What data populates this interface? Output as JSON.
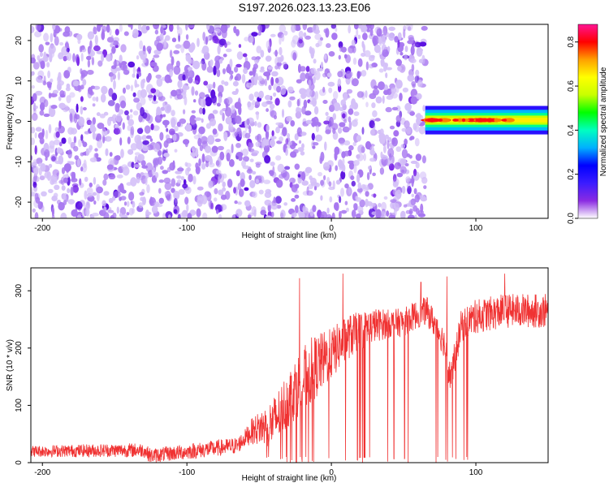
{
  "title": "S197.2026.023.13.23.E06",
  "colors": {
    "snr_line": "#f03232",
    "axis": "#000000",
    "colorbar": [
      "#ffffff",
      "#8a2be2",
      "#3b1cff",
      "#0000ff",
      "#00b0ff",
      "#00ffc0",
      "#00ff00",
      "#c8ff00",
      "#ffff00",
      "#ffa000",
      "#ff0000",
      "#ff1493"
    ]
  },
  "chart_data": [
    {
      "type": "heatmap",
      "title": "",
      "xlabel": "Height of straight line (km)",
      "ylabel": "Frequency (Hz)",
      "xlim": [
        -208,
        150
      ],
      "ylim": [
        -24,
        24
      ],
      "x_ticks": [
        -200,
        -100,
        0,
        100
      ],
      "y_ticks": [
        20,
        10,
        0,
        -10,
        -20
      ],
      "colorbar": {
        "label": "Normalized spectral amplitude",
        "range": [
          0.0,
          0.88
        ],
        "ticks": [
          0.0,
          0.2,
          0.4,
          0.6,
          0.8
        ]
      },
      "noise_region": {
        "x": [
          -208,
          65
        ],
        "y": [
          -24,
          24
        ],
        "amplitude": [
          0.05,
          0.25
        ]
      },
      "signal_band": {
        "x": [
          65,
          150
        ],
        "frequency": 0.3,
        "half_width_hz": 1.6,
        "peak_amplitude": 0.85
      },
      "grid": false
    },
    {
      "type": "line",
      "title": "",
      "xlabel": "Height of straight line (km)",
      "ylabel": "SNR (10 * v/v)",
      "xlim": [
        -208,
        150
      ],
      "ylim": [
        0,
        340
      ],
      "x_ticks": [
        -200,
        -100,
        0,
        100
      ],
      "y_ticks": [
        0,
        100,
        200,
        300
      ],
      "series_profile": [
        {
          "x": -208,
          "y": 20
        },
        {
          "x": -130,
          "y": 22
        },
        {
          "x": -125,
          "y": 12
        },
        {
          "x": -80,
          "y": 25
        },
        {
          "x": -65,
          "y": 30
        },
        {
          "x": -55,
          "y": 55
        },
        {
          "x": -40,
          "y": 70
        },
        {
          "x": -25,
          "y": 130
        },
        {
          "x": -12,
          "y": 165
        },
        {
          "x": 0,
          "y": 190
        },
        {
          "x": 12,
          "y": 220
        },
        {
          "x": 30,
          "y": 240
        },
        {
          "x": 50,
          "y": 245
        },
        {
          "x": 60,
          "y": 260
        },
        {
          "x": 66,
          "y": 265
        },
        {
          "x": 72,
          "y": 240
        },
        {
          "x": 78,
          "y": 210
        },
        {
          "x": 82,
          "y": 150
        },
        {
          "x": 86,
          "y": 190
        },
        {
          "x": 90,
          "y": 240
        },
        {
          "x": 100,
          "y": 255
        },
        {
          "x": 120,
          "y": 265
        },
        {
          "x": 150,
          "y": 265
        }
      ],
      "noise_spread": [
        {
          "x": -208,
          "s": 10
        },
        {
          "x": -60,
          "s": 15
        },
        {
          "x": -40,
          "s": 45
        },
        {
          "x": -15,
          "s": 60
        },
        {
          "x": 0,
          "s": 45
        },
        {
          "x": 40,
          "s": 25
        },
        {
          "x": 70,
          "s": 25
        },
        {
          "x": 100,
          "s": 30
        },
        {
          "x": 150,
          "s": 30
        }
      ],
      "dropouts_x_range": [
        -45,
        100
      ],
      "spikes": [
        {
          "x": -22,
          "y": 322
        },
        {
          "x": 8,
          "y": 330
        },
        {
          "x": 62,
          "y": 315
        },
        {
          "x": 80,
          "y": 325
        },
        {
          "x": 120,
          "y": 330
        }
      ],
      "grid": false
    }
  ]
}
